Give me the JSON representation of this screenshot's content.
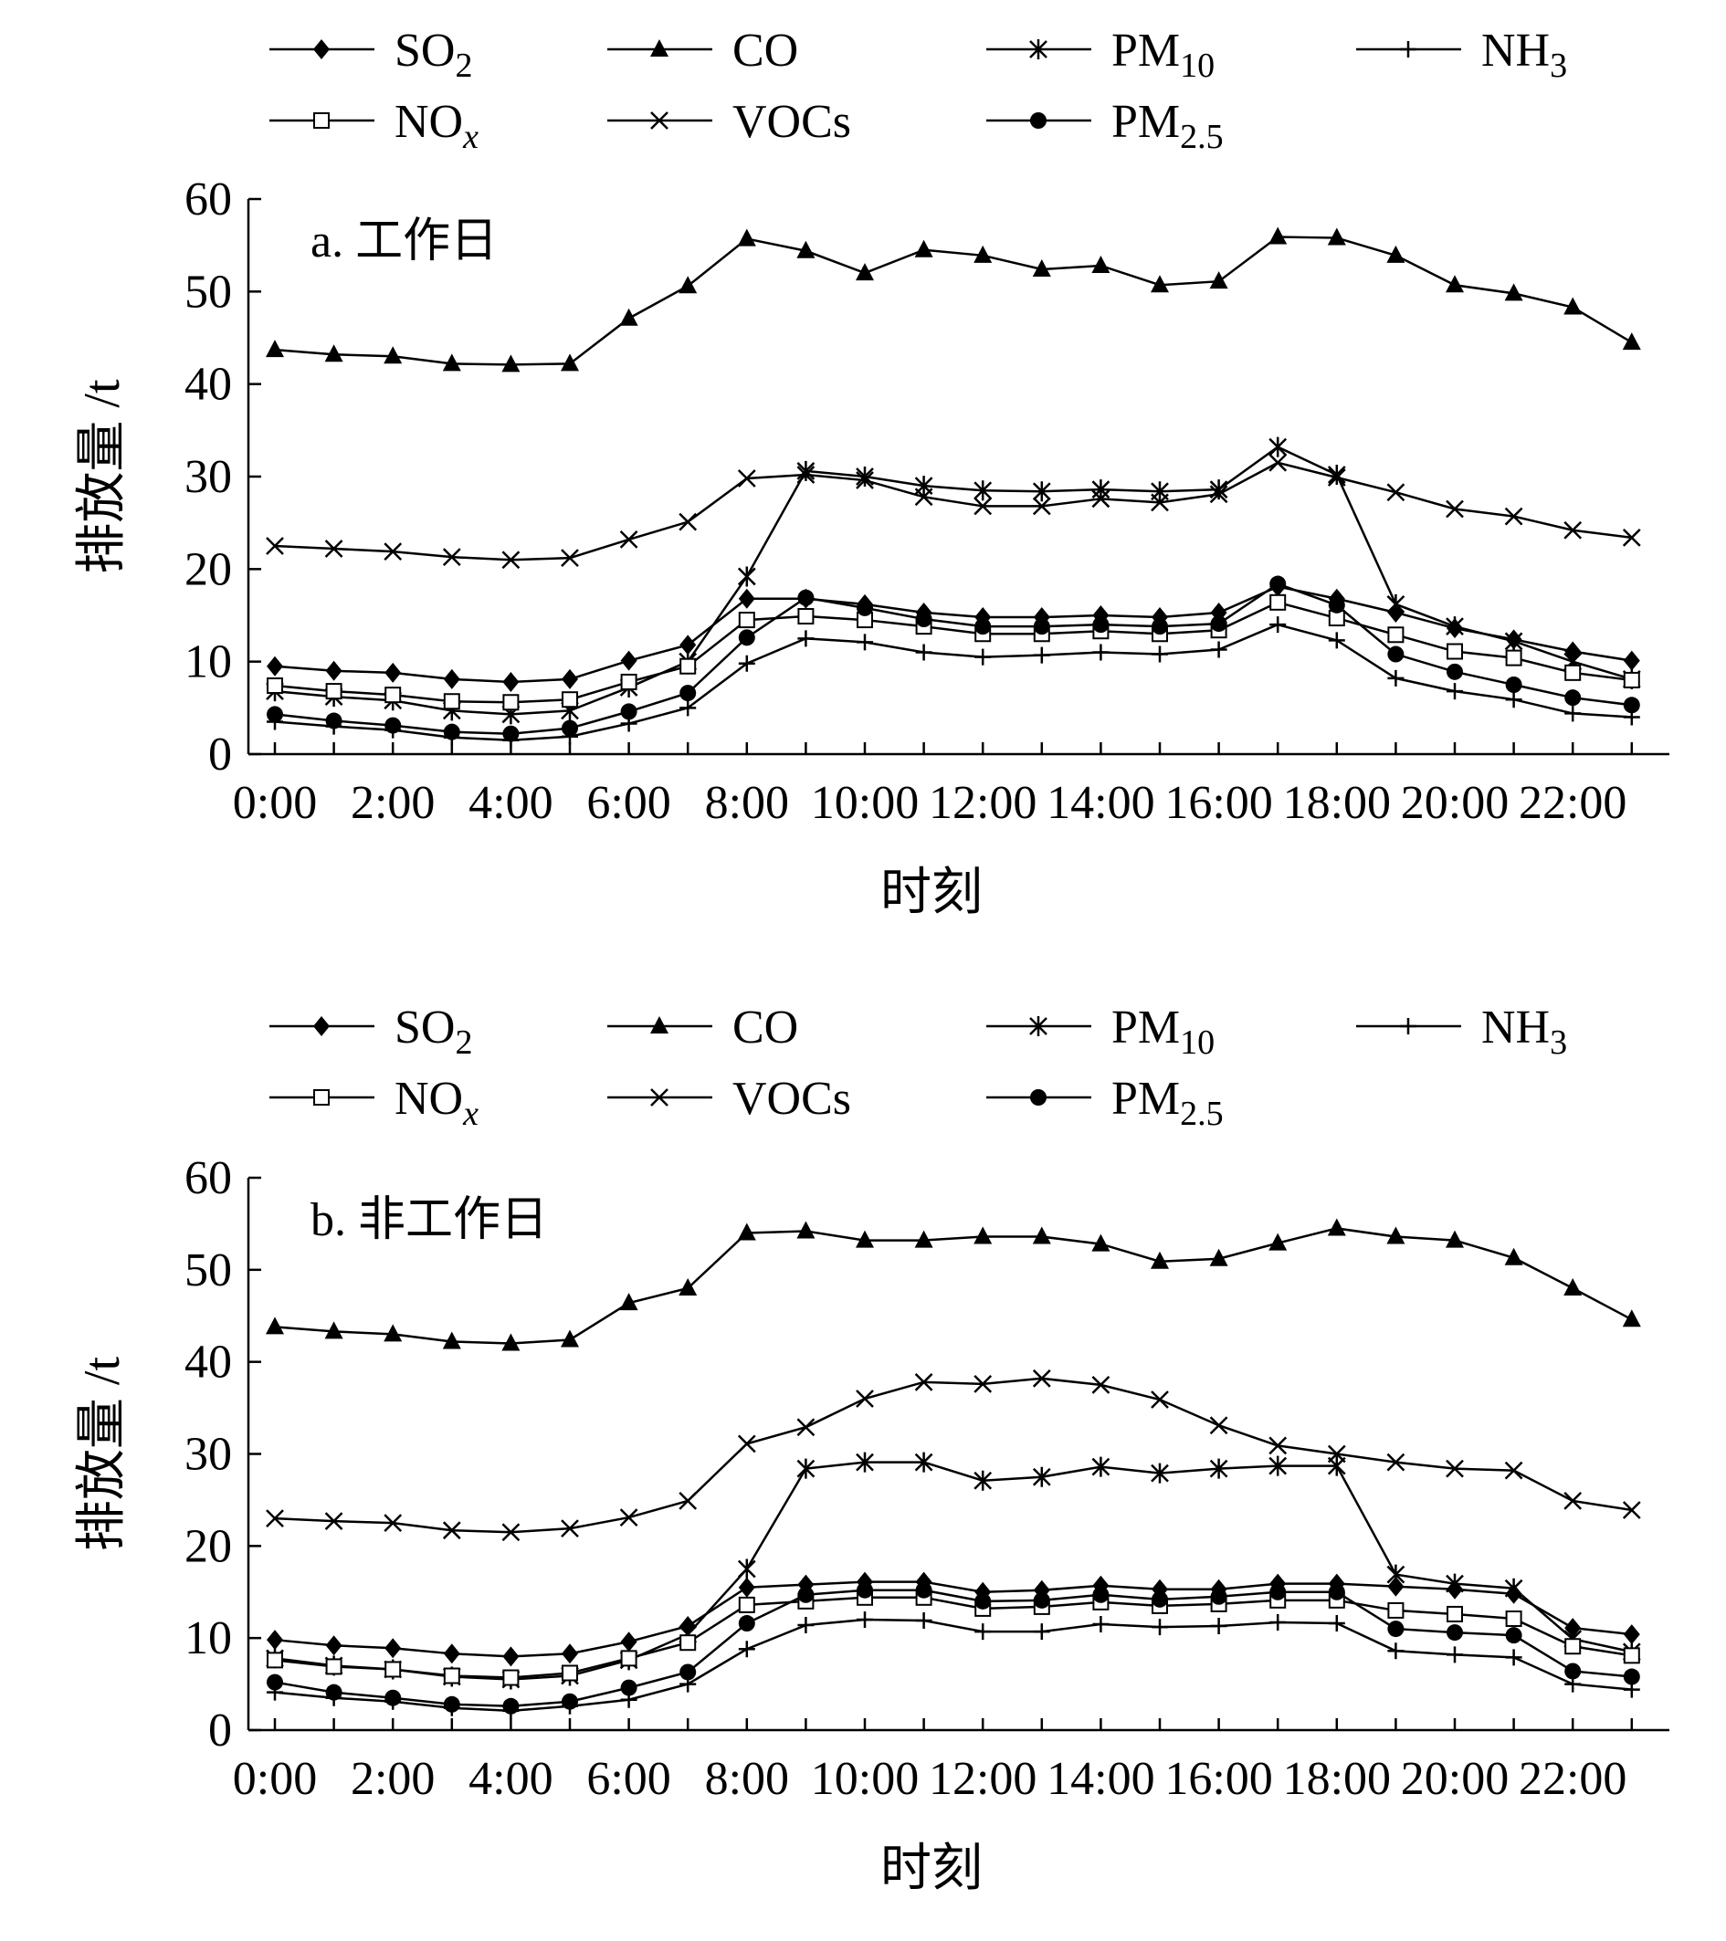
{
  "chart_data": [
    {
      "type": "line",
      "title": "a. 工作日",
      "xlabel": "时刻",
      "ylabel": "排放量 /t",
      "ylim": [
        0,
        60
      ],
      "yticks": [
        0,
        10,
        20,
        30,
        40,
        50,
        60
      ],
      "x": [
        0,
        1,
        2,
        3,
        4,
        5,
        6,
        7,
        8,
        9,
        10,
        11,
        12,
        13,
        14,
        15,
        16,
        17,
        18,
        19,
        20,
        21,
        22,
        23
      ],
      "xtick_labels": [
        "0:00",
        "2:00",
        "4:00",
        "6:00",
        "8:00",
        "10:00",
        "12:00",
        "14:00",
        "16:00",
        "18:00",
        "20:00",
        "22:00"
      ],
      "legend_position": "top",
      "series": [
        {
          "name": "SO2",
          "label": "SO",
          "sub": "2",
          "marker": "diamond",
          "values": [
            9.5,
            9.0,
            8.8,
            8.1,
            7.8,
            8.1,
            10.1,
            11.8,
            16.8,
            16.8,
            16.2,
            15.3,
            14.8,
            14.8,
            15.0,
            14.8,
            15.3,
            18.1,
            16.8,
            15.3,
            13.6,
            12.4,
            11.1,
            10.1
          ]
        },
        {
          "name": "CO",
          "label": "CO",
          "sub": "",
          "marker": "triangle",
          "values": [
            43.7,
            43.2,
            43.0,
            42.2,
            42.1,
            42.2,
            47.1,
            50.6,
            55.7,
            54.4,
            52.0,
            54.5,
            53.9,
            52.4,
            52.8,
            50.7,
            51.1,
            55.9,
            55.8,
            53.9,
            50.7,
            49.8,
            48.3,
            44.5
          ]
        },
        {
          "name": "PM10",
          "label": "PM",
          "sub": "10",
          "marker": "asterisk",
          "values": [
            6.8,
            6.2,
            5.8,
            4.7,
            4.3,
            4.7,
            7.2,
            10.0,
            19.2,
            30.6,
            30.0,
            29.0,
            28.5,
            28.4,
            28.6,
            28.4,
            28.6,
            33.2,
            30.2,
            16.2,
            13.8,
            12.2,
            10.0,
            8.1
          ]
        },
        {
          "name": "NH3",
          "label": "NH",
          "sub": "3",
          "marker": "plus",
          "values": [
            3.5,
            3.0,
            2.6,
            1.8,
            1.5,
            1.9,
            3.3,
            5.0,
            9.8,
            12.5,
            12.1,
            11.0,
            10.5,
            10.7,
            11.0,
            10.8,
            11.3,
            14.0,
            12.3,
            8.2,
            6.8,
            5.9,
            4.4,
            4.0
          ]
        },
        {
          "name": "NOx",
          "label": "NO",
          "sub": "x",
          "marker": "square",
          "values": [
            7.4,
            6.8,
            6.4,
            5.7,
            5.6,
            5.9,
            7.8,
            9.5,
            14.5,
            14.9,
            14.5,
            13.8,
            13.0,
            13.0,
            13.3,
            13.0,
            13.4,
            16.4,
            14.7,
            12.9,
            11.1,
            10.4,
            8.8,
            8.0
          ]
        },
        {
          "name": "VOCs",
          "label": "VOCs",
          "sub": "",
          "marker": "cross",
          "values": [
            22.5,
            22.2,
            21.9,
            21.3,
            21.0,
            21.2,
            23.2,
            25.1,
            29.8,
            30.2,
            29.6,
            27.8,
            26.8,
            26.8,
            27.6,
            27.2,
            28.1,
            31.5,
            29.9,
            28.3,
            26.5,
            25.7,
            24.2,
            23.4
          ]
        },
        {
          "name": "PM2.5",
          "label": "PM",
          "sub": "2.5",
          "marker": "circle",
          "values": [
            4.3,
            3.6,
            3.1,
            2.4,
            2.2,
            2.8,
            4.6,
            6.6,
            12.6,
            16.9,
            15.8,
            14.6,
            13.8,
            13.8,
            14.0,
            13.8,
            14.1,
            18.4,
            16.1,
            10.8,
            8.9,
            7.5,
            6.1,
            5.3
          ]
        }
      ]
    },
    {
      "type": "line",
      "title": "b. 非工作日",
      "xlabel": "时刻",
      "ylabel": "排放量 /t",
      "ylim": [
        0,
        60
      ],
      "yticks": [
        0,
        10,
        20,
        30,
        40,
        50,
        60
      ],
      "x": [
        0,
        1,
        2,
        3,
        4,
        5,
        6,
        7,
        8,
        9,
        10,
        11,
        12,
        13,
        14,
        15,
        16,
        17,
        18,
        19,
        20,
        21,
        22,
        23
      ],
      "xtick_labels": [
        "0:00",
        "2:00",
        "4:00",
        "6:00",
        "8:00",
        "10:00",
        "12:00",
        "14:00",
        "16:00",
        "18:00",
        "20:00",
        "22:00"
      ],
      "legend_position": "top",
      "series": [
        {
          "name": "SO2",
          "label": "SO",
          "sub": "2",
          "marker": "diamond",
          "values": [
            9.8,
            9.2,
            8.9,
            8.3,
            8.0,
            8.3,
            9.6,
            11.3,
            15.5,
            15.8,
            16.1,
            16.1,
            15.0,
            15.2,
            15.7,
            15.3,
            15.3,
            15.9,
            15.9,
            15.6,
            15.3,
            14.8,
            11.1,
            10.4
          ]
        },
        {
          "name": "CO",
          "label": "CO",
          "sub": "",
          "marker": "triangle",
          "values": [
            43.8,
            43.3,
            43.0,
            42.2,
            42.0,
            42.4,
            46.4,
            48.0,
            54.0,
            54.2,
            53.2,
            53.2,
            53.6,
            53.6,
            52.8,
            50.9,
            51.2,
            52.9,
            54.5,
            53.6,
            53.2,
            51.3,
            48.0,
            44.6
          ]
        },
        {
          "name": "PM10",
          "label": "PM",
          "sub": "10",
          "marker": "asterisk",
          "values": [
            7.8,
            7.0,
            6.6,
            5.8,
            5.5,
            5.9,
            7.6,
            10.4,
            17.5,
            28.4,
            29.1,
            29.1,
            27.1,
            27.5,
            28.6,
            27.9,
            28.4,
            28.7,
            28.7,
            16.9,
            15.9,
            15.4,
            9.9,
            8.5
          ]
        },
        {
          "name": "NH3",
          "label": "NH",
          "sub": "3",
          "marker": "plus",
          "values": [
            4.1,
            3.5,
            3.1,
            2.4,
            2.1,
            2.6,
            3.3,
            5.0,
            8.8,
            11.4,
            12.0,
            11.9,
            10.7,
            10.7,
            11.5,
            11.2,
            11.3,
            11.7,
            11.6,
            8.6,
            8.2,
            7.9,
            5.0,
            4.4
          ]
        },
        {
          "name": "NOx",
          "label": "NO",
          "sub": "x",
          "marker": "square",
          "values": [
            7.6,
            6.9,
            6.6,
            5.9,
            5.7,
            6.2,
            7.8,
            9.5,
            13.6,
            14.0,
            14.4,
            14.4,
            13.2,
            13.4,
            13.9,
            13.5,
            13.7,
            14.1,
            14.1,
            13.0,
            12.6,
            12.1,
            9.1,
            8.1
          ]
        },
        {
          "name": "VOCs",
          "label": "VOCs",
          "sub": "",
          "marker": "cross",
          "values": [
            23.0,
            22.7,
            22.5,
            21.7,
            21.5,
            21.9,
            23.1,
            24.9,
            31.1,
            32.9,
            36.0,
            37.8,
            37.6,
            38.2,
            37.5,
            35.9,
            33.1,
            30.9,
            30.0,
            29.1,
            28.4,
            28.2,
            24.9,
            23.9
          ]
        },
        {
          "name": "PM2.5",
          "label": "PM",
          "sub": "2.5",
          "marker": "circle",
          "values": [
            5.2,
            4.1,
            3.5,
            2.8,
            2.6,
            3.1,
            4.6,
            6.3,
            11.6,
            14.7,
            15.2,
            15.2,
            14.0,
            14.1,
            14.7,
            14.2,
            14.5,
            15.0,
            15.0,
            11.0,
            10.6,
            10.3,
            6.4,
            5.8
          ]
        }
      ]
    }
  ]
}
